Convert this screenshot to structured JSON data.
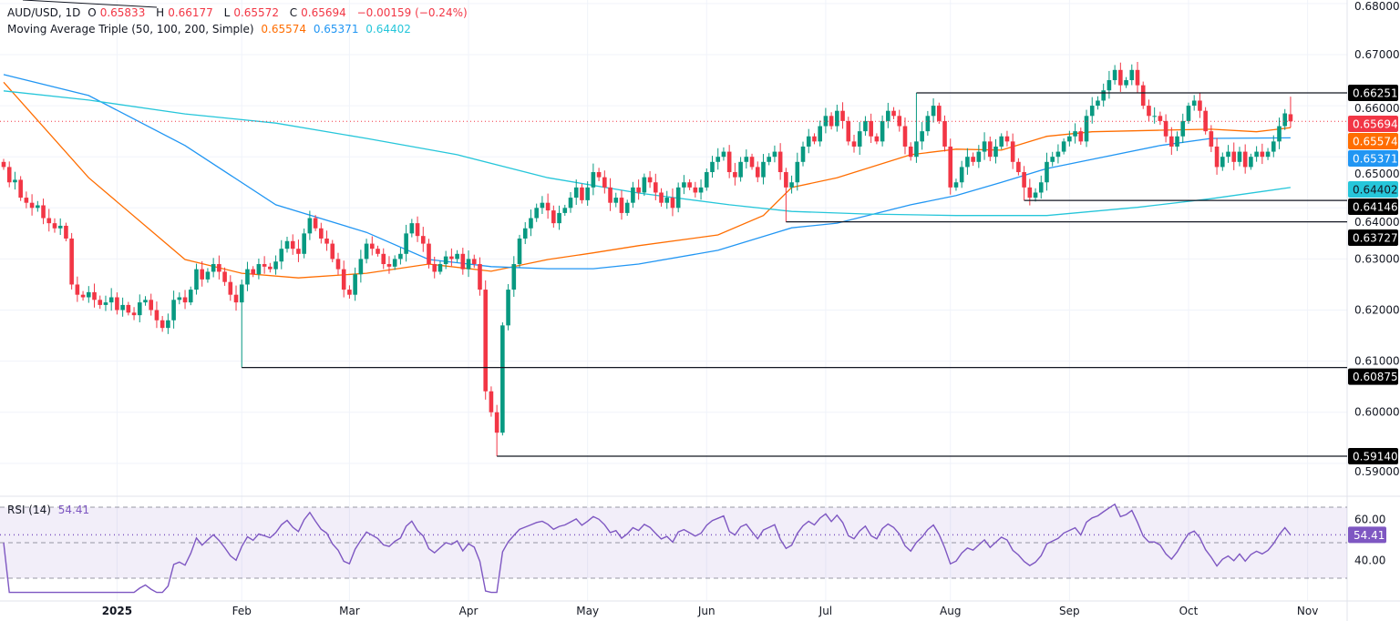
{
  "header": {
    "symbol": "AUD/USD, 1D",
    "open_label": "O",
    "open": "0.65833",
    "high_label": "H",
    "high": "0.66177",
    "low_label": "L",
    "low": "0.65572",
    "close_label": "C",
    "close": "0.65694",
    "change": "−0.00159 (−0.24%)"
  },
  "ma_legend": {
    "title": "Moving Average Triple (50, 100, 200, Simple)",
    "ma50": "0.65574",
    "ma100": "0.65371",
    "ma200": "0.64402"
  },
  "rsi_legend": {
    "title": "RSI (14)",
    "value": "54.41"
  },
  "colors": {
    "up": "#089981",
    "down": "#f23645",
    "ma50": "#ff6d00",
    "ma100": "#2196f3",
    "ma200": "#26c6da",
    "rsi": "#7e57c2"
  },
  "chart_data": [
    {
      "type": "candlestick",
      "symbol": "AUD/USD",
      "interval": "1D",
      "ylim": [
        0.59,
        0.68
      ],
      "y_ticks": [
        "0.59000",
        "0.60000",
        "0.61000",
        "0.62000",
        "0.63000",
        "0.64000",
        "0.65000",
        "0.66000",
        "0.67000",
        "0.68000"
      ],
      "x_tick_labels": [
        "2025",
        "Feb",
        "Mar",
        "Apr",
        "May",
        "Jun",
        "Jul",
        "Aug",
        "Sep",
        "Oct",
        "Nov"
      ],
      "grid": true,
      "closes": [
        0.648,
        0.645,
        0.6455,
        0.642,
        0.641,
        0.64,
        0.6405,
        0.638,
        0.637,
        0.636,
        0.6365,
        0.634,
        0.625,
        0.623,
        0.6225,
        0.6235,
        0.622,
        0.621,
        0.6215,
        0.6225,
        0.62,
        0.621,
        0.6195,
        0.619,
        0.6215,
        0.622,
        0.62,
        0.618,
        0.6165,
        0.618,
        0.622,
        0.6225,
        0.6215,
        0.624,
        0.628,
        0.626,
        0.6275,
        0.629,
        0.6275,
        0.6255,
        0.623,
        0.6215,
        0.625,
        0.628,
        0.627,
        0.629,
        0.6285,
        0.628,
        0.6295,
        0.632,
        0.6335,
        0.632,
        0.631,
        0.635,
        0.638,
        0.636,
        0.634,
        0.633,
        0.63,
        0.628,
        0.624,
        0.623,
        0.627,
        0.63,
        0.633,
        0.632,
        0.631,
        0.629,
        0.6285,
        0.63,
        0.631,
        0.635,
        0.637,
        0.6345,
        0.633,
        0.629,
        0.6275,
        0.629,
        0.6305,
        0.63,
        0.631,
        0.628,
        0.63,
        0.629,
        0.624,
        0.6041,
        0.6,
        0.596,
        0.617,
        0.624,
        0.629,
        0.634,
        0.636,
        0.638,
        0.64,
        0.641,
        0.6395,
        0.637,
        0.639,
        0.64,
        0.642,
        0.644,
        0.6415,
        0.644,
        0.647,
        0.646,
        0.644,
        0.641,
        0.642,
        0.639,
        0.641,
        0.644,
        0.643,
        0.646,
        0.645,
        0.643,
        0.641,
        0.642,
        0.64,
        0.644,
        0.645,
        0.644,
        0.643,
        0.644,
        0.647,
        0.649,
        0.65,
        0.651,
        0.647,
        0.646,
        0.649,
        0.65,
        0.648,
        0.646,
        0.649,
        0.65,
        0.651,
        0.647,
        0.644,
        0.645,
        0.649,
        0.652,
        0.654,
        0.653,
        0.656,
        0.658,
        0.656,
        0.659,
        0.657,
        0.653,
        0.652,
        0.655,
        0.657,
        0.654,
        0.653,
        0.657,
        0.659,
        0.658,
        0.656,
        0.652,
        0.65,
        0.653,
        0.655,
        0.658,
        0.66,
        0.657,
        0.652,
        0.644,
        0.645,
        0.648,
        0.65,
        0.649,
        0.651,
        0.653,
        0.65,
        0.652,
        0.654,
        0.653,
        0.649,
        0.647,
        0.644,
        0.642,
        0.643,
        0.645,
        0.649,
        0.65,
        0.651,
        0.653,
        0.654,
        0.655,
        0.653,
        0.658,
        0.66,
        0.661,
        0.663,
        0.665,
        0.667,
        0.664,
        0.665,
        0.667,
        0.664,
        0.66,
        0.658,
        0.658,
        0.657,
        0.654,
        0.652,
        0.654,
        0.657,
        0.66,
        0.661,
        0.659,
        0.655,
        0.652,
        0.648,
        0.65,
        0.651,
        0.649,
        0.651,
        0.648,
        0.65,
        0.651,
        0.65,
        0.651,
        0.653,
        0.656,
        0.6585,
        0.65694
      ],
      "last_bar": {
        "open": 0.65833,
        "high": 0.66177,
        "low": 0.65572,
        "close": 0.65694
      },
      "moving_averages": [
        {
          "name": "MA50",
          "label": "0.65574",
          "color": "#ff6d00",
          "points": [
            [
              0,
              0.6646
            ],
            [
              15,
              0.6459
            ],
            [
              32,
              0.6299
            ],
            [
              42,
              0.6272
            ],
            [
              52,
              0.6263
            ],
            [
              64,
              0.6272
            ],
            [
              75,
              0.629
            ],
            [
              86,
              0.6276
            ],
            [
              96,
              0.6299
            ],
            [
              104,
              0.6312
            ],
            [
              112,
              0.6326
            ],
            [
              126,
              0.6347
            ],
            [
              134,
              0.6385
            ],
            [
              139,
              0.644
            ],
            [
              147,
              0.6459
            ],
            [
              160,
              0.6504
            ],
            [
              168,
              0.6515
            ],
            [
              176,
              0.6513
            ],
            [
              184,
              0.654
            ],
            [
              192,
              0.6549
            ],
            [
              204,
              0.6552
            ],
            [
              213,
              0.6554
            ],
            [
              221,
              0.6549
            ],
            [
              227,
              0.6557
            ]
          ]
        },
        {
          "name": "MA100",
          "label": "0.65371",
          "color": "#2196f3",
          "points": [
            [
              0,
              0.6661
            ],
            [
              15,
              0.662
            ],
            [
              32,
              0.6522
            ],
            [
              48,
              0.6406
            ],
            [
              64,
              0.6352
            ],
            [
              75,
              0.6299
            ],
            [
              86,
              0.6285
            ],
            [
              96,
              0.6281
            ],
            [
              104,
              0.6281
            ],
            [
              112,
              0.629
            ],
            [
              126,
              0.6317
            ],
            [
              139,
              0.6361
            ],
            [
              147,
              0.637
            ],
            [
              160,
              0.6406
            ],
            [
              168,
              0.6424
            ],
            [
              176,
              0.645
            ],
            [
              184,
              0.6477
            ],
            [
              192,
              0.6495
            ],
            [
              204,
              0.6522
            ],
            [
              213,
              0.6536
            ],
            [
              227,
              0.6537
            ]
          ]
        },
        {
          "name": "MA200",
          "label": "0.64402",
          "color": "#26c6da",
          "points": [
            [
              0,
              0.6629
            ],
            [
              15,
              0.6611
            ],
            [
              32,
              0.6584
            ],
            [
              48,
              0.6566
            ],
            [
              64,
              0.6536
            ],
            [
              80,
              0.6504
            ],
            [
              96,
              0.6459
            ],
            [
              112,
              0.6429
            ],
            [
              128,
              0.6406
            ],
            [
              139,
              0.6393
            ],
            [
              152,
              0.6388
            ],
            [
              168,
              0.6385
            ],
            [
              184,
              0.6385
            ],
            [
              200,
              0.6401
            ],
            [
              213,
              0.6418
            ],
            [
              227,
              0.644
            ]
          ]
        }
      ],
      "levels": [
        {
          "label": "0.66251",
          "value": 0.66251,
          "from_bar": 161,
          "kind": "high"
        },
        {
          "label": "0.64146",
          "value": 0.64146,
          "from_bar": 180,
          "kind": "low"
        },
        {
          "label": "0.63727",
          "value": 0.63727,
          "from_bar": 138,
          "kind": "low"
        },
        {
          "label": "0.60875",
          "value": 0.60875,
          "from_bar": 42,
          "kind": "low"
        },
        {
          "label": "0.59140",
          "value": 0.5914,
          "from_bar": 87,
          "kind": "low"
        }
      ],
      "last_price": {
        "label": "0.65694",
        "value": 0.65694
      }
    },
    {
      "type": "line",
      "name": "RSI (14)",
      "ylim": [
        20,
        80
      ],
      "y_ticks": [
        "40.00",
        "60.00"
      ],
      "band": [
        30,
        70
      ],
      "midline": 50,
      "current": {
        "label": "54.41",
        "value": 54.41
      }
    }
  ]
}
